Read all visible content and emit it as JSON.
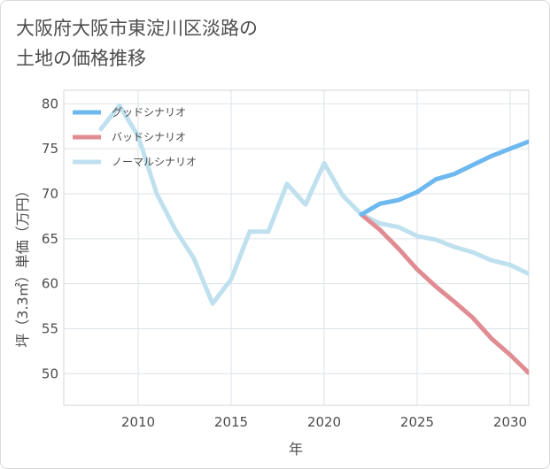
{
  "chart_data": {
    "type": "line",
    "title": "大阪府大阪市東淀川区淡路の土地の価格推移",
    "title_lines": [
      "大阪府大阪市東淀川区淡路の",
      "土地の価格推移"
    ],
    "xlabel": "年",
    "ylabel": "坪（3.3㎡）単価（万円）",
    "xlim": [
      2006,
      2031
    ],
    "ylim": [
      46.5,
      81.5
    ],
    "x_ticks": [
      2010,
      2015,
      2020,
      2025,
      2030
    ],
    "y_ticks": [
      50,
      55,
      60,
      65,
      70,
      75,
      80
    ],
    "grid": true,
    "legend_position": "top-left",
    "series": [
      {
        "name": "グッドシナリオ",
        "color": "#6cb8ef",
        "x": [
          2022,
          2023,
          2024,
          2025,
          2026,
          2027,
          2028,
          2029,
          2030,
          2031
        ],
        "values": [
          67.7,
          68.9,
          69.3,
          70.2,
          71.6,
          72.2,
          73.2,
          74.2,
          75.0,
          75.8
        ]
      },
      {
        "name": "バッドシナリオ",
        "color": "#e08c92",
        "x": [
          2022,
          2023,
          2024,
          2025,
          2026,
          2027,
          2028,
          2029,
          2030,
          2031
        ],
        "values": [
          67.7,
          66.0,
          63.9,
          61.6,
          59.7,
          58.0,
          56.2,
          53.9,
          52.1,
          50.1
        ]
      },
      {
        "name": "ノーマルシナリオ",
        "color": "#bfe0ee",
        "x": [
          2008,
          2009,
          2010,
          2011,
          2012,
          2013,
          2014,
          2015,
          2016,
          2017,
          2018,
          2019,
          2020,
          2021,
          2022,
          2023,
          2024,
          2025,
          2026,
          2027,
          2028,
          2029,
          2030,
          2031
        ],
        "values": [
          77.2,
          79.8,
          76.4,
          70.0,
          66.0,
          62.8,
          57.8,
          60.5,
          65.8,
          65.8,
          71.1,
          68.8,
          73.4,
          69.8,
          67.7,
          66.7,
          66.3,
          65.3,
          64.9,
          64.1,
          63.5,
          62.6,
          62.1,
          61.1
        ]
      }
    ]
  }
}
